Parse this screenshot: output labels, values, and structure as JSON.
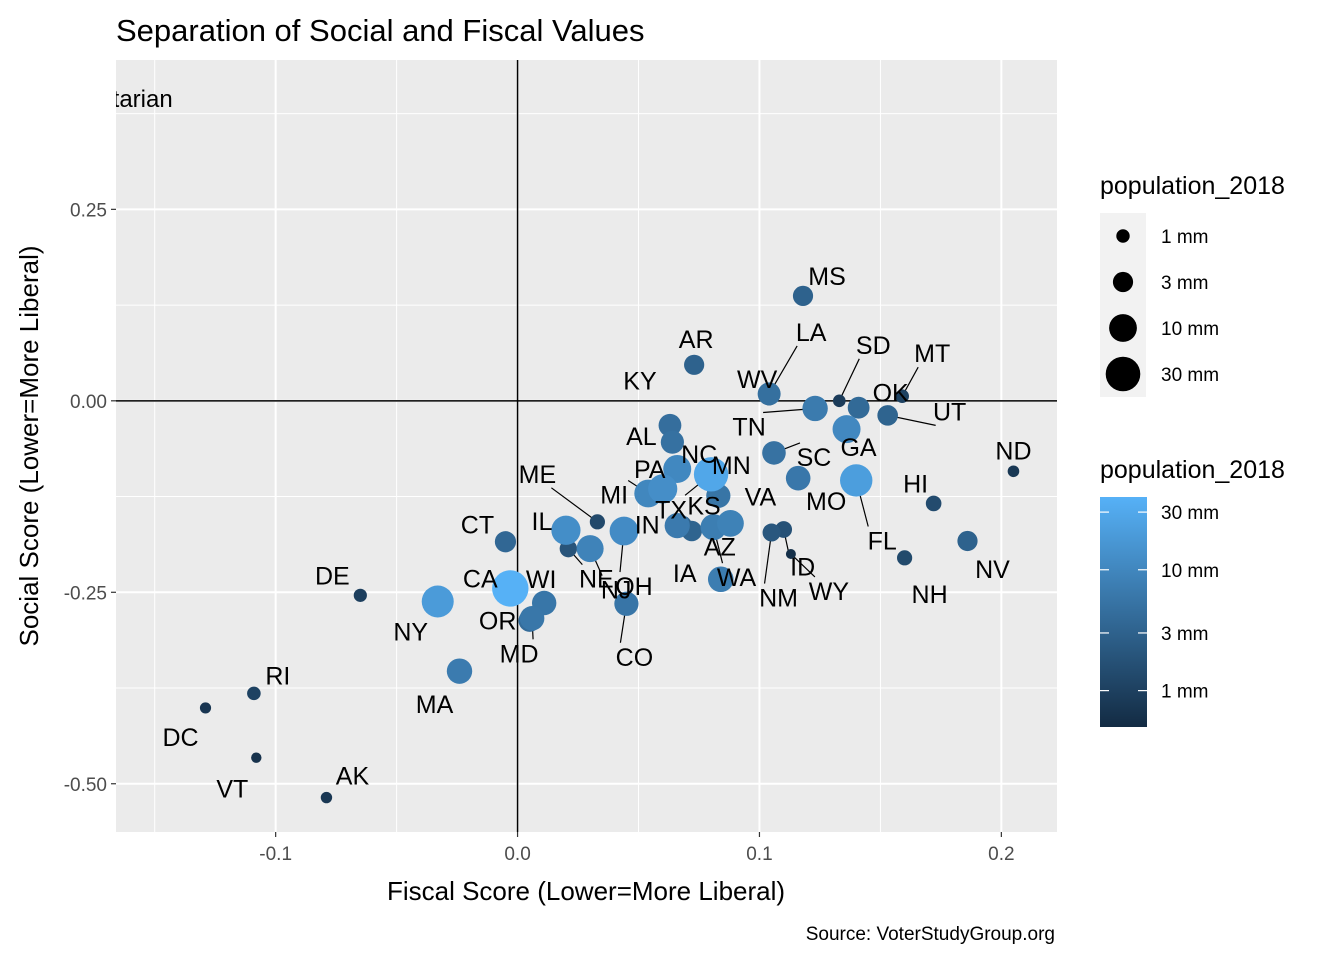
{
  "chart_data": {
    "type": "scatter",
    "title": "Separation of Social and Fiscal Values",
    "xlabel": "Fiscal Score (Lower=More Liberal)",
    "ylabel": "Social Score (Lower=More Liberal)",
    "caption": "Source: VoterStudyGroup.org",
    "corner_annotation": "Libertarian",
    "xlim": [
      -0.166,
      0.223
    ],
    "ylim": [
      -0.563,
      0.445
    ],
    "x_ticks": [
      -0.1,
      0.0,
      0.1,
      0.2
    ],
    "x_tick_labels": [
      "-0.1",
      "0.0",
      "0.1",
      "0.2"
    ],
    "y_ticks": [
      -0.5,
      -0.25,
      0.0,
      0.25
    ],
    "y_tick_labels": [
      "-0.50",
      "-0.25",
      "0.00",
      "0.25"
    ],
    "reference_lines": {
      "x": 0,
      "y": 0
    },
    "grid": true,
    "legend_placement": "right",
    "size_legend": {
      "title": "population_2018",
      "entries": [
        {
          "label": "1 mm",
          "value": 1
        },
        {
          "label": "3 mm",
          "value": 3
        },
        {
          "label": "10 mm",
          "value": 10
        },
        {
          "label": "30 mm",
          "value": 30
        }
      ]
    },
    "color_legend": {
      "title": "population_2018",
      "low_color": "#132B43",
      "high_color": "#56B1F7",
      "breaks": [
        {
          "label": "30 mm",
          "value": 30
        },
        {
          "label": "10 mm",
          "value": 10
        },
        {
          "label": "3 mm",
          "value": 3
        },
        {
          "label": "1 mm",
          "value": 1
        }
      ]
    },
    "points": [
      {
        "state": "MS",
        "x": 0.118,
        "y": 0.137,
        "pop": 3.0
      },
      {
        "state": "AR",
        "x": 0.073,
        "y": 0.047,
        "pop": 3.0
      },
      {
        "state": "LA",
        "x": 0.104,
        "y": 0.009,
        "pop": 4.7
      },
      {
        "state": "WV",
        "x": 0.104,
        "y": 0.005,
        "pop": 1.8
      },
      {
        "state": "SD",
        "x": 0.133,
        "y": 0.0,
        "pop": 0.88
      },
      {
        "state": "MT",
        "x": 0.159,
        "y": 0.006,
        "pop": 1.06
      },
      {
        "state": "OK",
        "x": 0.141,
        "y": -0.009,
        "pop": 3.9
      },
      {
        "state": "UT",
        "x": 0.153,
        "y": -0.019,
        "pop": 3.2
      },
      {
        "state": "TN",
        "x": 0.123,
        "y": -0.01,
        "pop": 6.8
      },
      {
        "state": "KY",
        "x": 0.063,
        "y": -0.032,
        "pop": 4.5
      },
      {
        "state": "AL",
        "x": 0.064,
        "y": -0.054,
        "pop": 4.9
      },
      {
        "state": "NC",
        "x": 0.066,
        "y": -0.089,
        "pop": 10.4
      },
      {
        "state": "GA",
        "x": 0.136,
        "y": -0.037,
        "pop": 10.5
      },
      {
        "state": "TX",
        "x": 0.08,
        "y": -0.096,
        "pop": 28.7
      },
      {
        "state": "SC",
        "x": 0.106,
        "y": -0.068,
        "pop": 5.1
      },
      {
        "state": "ND",
        "x": 0.205,
        "y": -0.092,
        "pop": 0.76
      },
      {
        "state": "HI",
        "x": 0.172,
        "y": -0.134,
        "pop": 1.42
      },
      {
        "state": "FL",
        "x": 0.14,
        "y": -0.104,
        "pop": 21.3
      },
      {
        "state": "MO",
        "x": 0.116,
        "y": -0.101,
        "pop": 6.1
      },
      {
        "state": "MN",
        "x": 0.083,
        "y": -0.124,
        "pop": 5.6
      },
      {
        "state": "PA",
        "x": 0.06,
        "y": -0.115,
        "pop": 12.8
      },
      {
        "state": "ME",
        "x": 0.033,
        "y": -0.158,
        "pop": 1.34
      },
      {
        "state": "MI",
        "x": 0.054,
        "y": -0.121,
        "pop": 10.0
      },
      {
        "state": "KS",
        "x": 0.068,
        "y": -0.163,
        "pop": 2.9
      },
      {
        "state": "VA",
        "x": 0.088,
        "y": -0.16,
        "pop": 8.5
      },
      {
        "state": "IN",
        "x": 0.066,
        "y": -0.163,
        "pop": 6.7
      },
      {
        "state": "IA",
        "x": 0.072,
        "y": -0.17,
        "pop": 3.2
      },
      {
        "state": "IL",
        "x": 0.02,
        "y": -0.169,
        "pop": 12.7
      },
      {
        "state": "NJ",
        "x": 0.03,
        "y": -0.193,
        "pop": 8.9
      },
      {
        "state": "OH",
        "x": 0.044,
        "y": -0.17,
        "pop": 11.7
      },
      {
        "state": "CT",
        "x": -0.005,
        "y": -0.184,
        "pop": 3.57
      },
      {
        "state": "CA",
        "x": -0.003,
        "y": -0.245,
        "pop": 39.5
      },
      {
        "state": "WI",
        "x": 0.011,
        "y": -0.264,
        "pop": 5.8
      },
      {
        "state": "NE",
        "x": 0.021,
        "y": -0.193,
        "pop": 1.93
      },
      {
        "state": "AZ",
        "x": 0.084,
        "y": -0.233,
        "pop": 7.2
      },
      {
        "state": "ID",
        "x": 0.11,
        "y": -0.168,
        "pop": 1.75
      },
      {
        "state": "NM",
        "x": 0.105,
        "y": -0.172,
        "pop": 2.1
      },
      {
        "state": "WY",
        "x": 0.113,
        "y": -0.2,
        "pop": 0.58
      },
      {
        "state": "NH",
        "x": 0.16,
        "y": -0.205,
        "pop": 1.36
      },
      {
        "state": "NV",
        "x": 0.186,
        "y": -0.183,
        "pop": 3.0
      },
      {
        "state": "CO",
        "x": 0.045,
        "y": -0.265,
        "pop": 5.7
      },
      {
        "state": "WA",
        "x": 0.081,
        "y": -0.165,
        "pop": 7.5
      },
      {
        "state": "OR",
        "x": 0.005,
        "y": -0.287,
        "pop": 4.2
      },
      {
        "state": "MD",
        "x": 0.006,
        "y": -0.284,
        "pop": 6.0
      },
      {
        "state": "DE",
        "x": -0.065,
        "y": -0.254,
        "pop": 0.97
      },
      {
        "state": "NY",
        "x": -0.033,
        "y": -0.262,
        "pop": 19.5
      },
      {
        "state": "MA",
        "x": -0.024,
        "y": -0.353,
        "pop": 6.9
      },
      {
        "state": "RI",
        "x": -0.109,
        "y": -0.382,
        "pop": 1.06
      },
      {
        "state": "DC",
        "x": -0.129,
        "y": -0.401,
        "pop": 0.7
      },
      {
        "state": "VT",
        "x": -0.108,
        "y": -0.466,
        "pop": 0.63
      },
      {
        "state": "AK",
        "x": -0.079,
        "y": -0.518,
        "pop": 0.74
      }
    ]
  }
}
